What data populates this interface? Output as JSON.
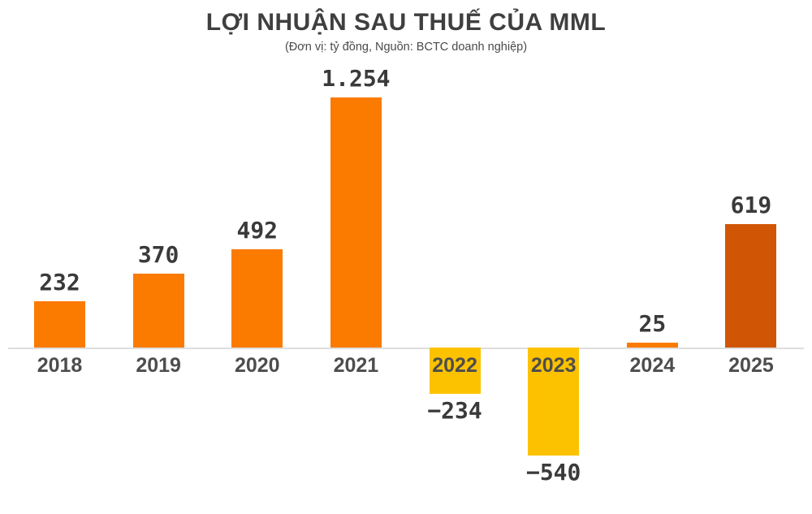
{
  "header": {
    "title": "LỢI NHUẬN SAU THUẾ CỦA MML",
    "subtitle": "(Đơn vị: tỷ đồng, Nguồn: BCTC doanh nghiệp)"
  },
  "chart_data": {
    "type": "bar",
    "title": "LỢI NHUẬN SAU THUẾ CỦA MML",
    "subtitle": "(Đơn vị: tỷ đồng, Nguồn: BCTC doanh nghiệp)",
    "unit": "tỷ đồng",
    "source": "BCTC doanh nghiệp",
    "categories": [
      "2018",
      "2019",
      "2020",
      "2021",
      "2022",
      "2023",
      "2024",
      "2025"
    ],
    "values": [
      232,
      370,
      492,
      1254,
      -234,
      -540,
      25,
      619
    ],
    "value_labels": [
      "232",
      "370",
      "492",
      "1.254",
      "−234",
      "−540",
      "25",
      "619"
    ],
    "bar_colors": [
      "#FB7A00",
      "#FB7A00",
      "#FB7A00",
      "#FB7A00",
      "#FCC200",
      "#FCC200",
      "#FB7A00",
      "#D05504"
    ],
    "xlabel": "",
    "ylabel": "",
    "ylim": [
      -540,
      1254
    ],
    "grid": false,
    "legend": "none",
    "baseline_value": 0
  },
  "colors": {
    "bar_positive": "#FB7A00",
    "bar_negative": "#FCC200",
    "bar_highlight_2025": "#D05504",
    "axis_line": "#DEDEDE",
    "title_text": "#3F3F3F",
    "subtitle_text": "#4A4A4A",
    "value_label_text": "#3A3A3A",
    "year_label_text": "#4D4D4D",
    "background": "#FFFFFF"
  }
}
